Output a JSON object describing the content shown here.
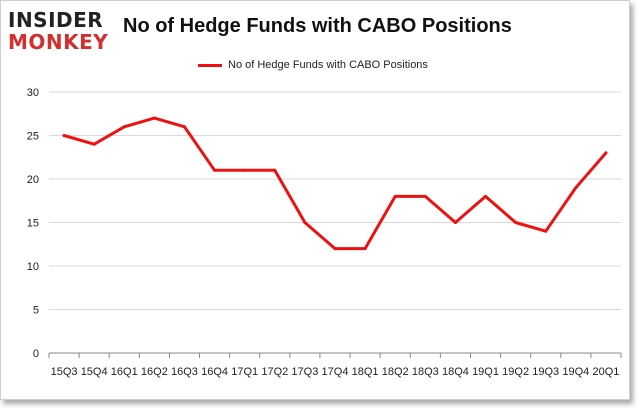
{
  "logo": {
    "line1": "INSIDER",
    "line2": "MONKEY"
  },
  "colors": {
    "series": "#ee1111",
    "grid": "#d9d9d9",
    "axis": "#888888",
    "text": "#222222"
  },
  "chart_data": {
    "type": "line",
    "title": "No of Hedge Funds with CABO Positions",
    "xlabel": "",
    "ylabel": "",
    "categories": [
      "15Q3",
      "15Q4",
      "16Q1",
      "16Q2",
      "16Q3",
      "16Q4",
      "17Q1",
      "17Q2",
      "17Q3",
      "17Q4",
      "18Q1",
      "18Q2",
      "18Q3",
      "18Q4",
      "19Q1",
      "19Q2",
      "19Q3",
      "19Q4",
      "20Q1"
    ],
    "series": [
      {
        "name": "No of Hedge Funds with CABO Positions",
        "values": [
          25,
          24,
          26,
          27,
          26,
          21,
          21,
          21,
          15,
          12,
          12,
          18,
          18,
          15,
          18,
          15,
          14,
          19,
          23
        ]
      }
    ],
    "ylim": [
      0,
      30
    ],
    "yticks": [
      0,
      5,
      10,
      15,
      20,
      25,
      30
    ],
    "grid": true,
    "legend": "top-center"
  }
}
